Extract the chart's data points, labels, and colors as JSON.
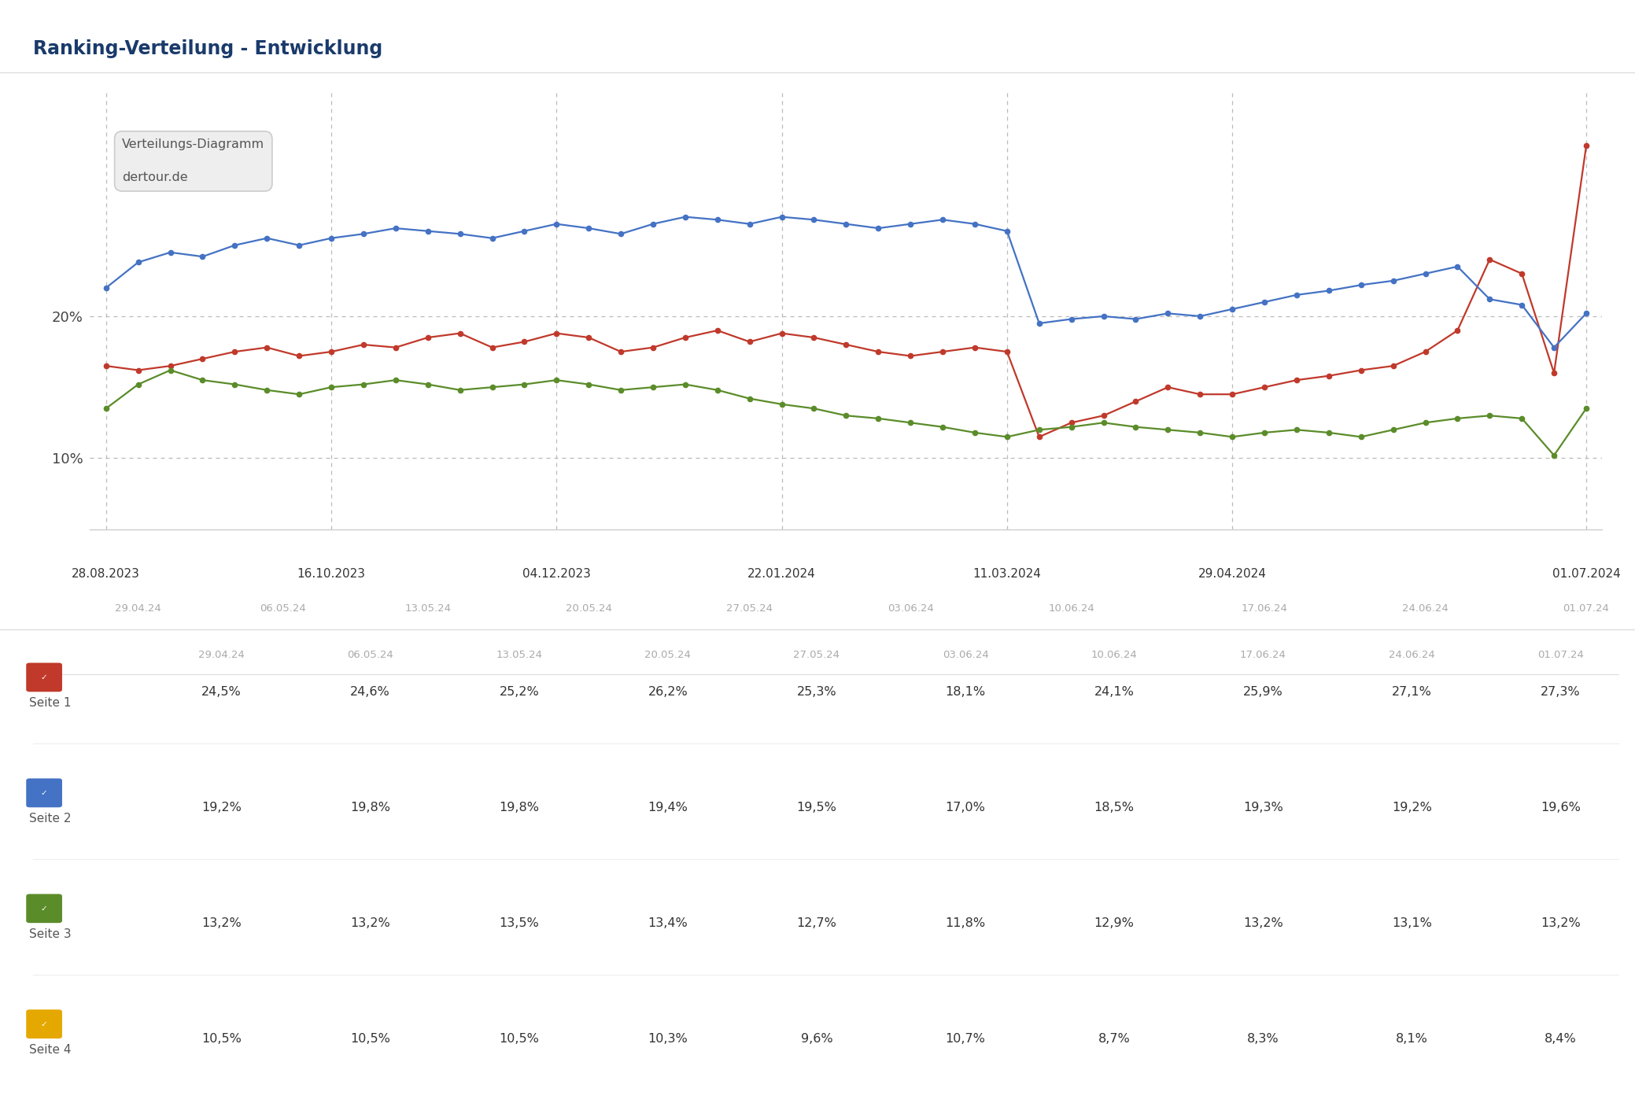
{
  "title": "Ranking-Verteilung - Entwicklung",
  "title_color": "#1a3a6b",
  "background_color": "#ffffff",
  "annotation_box": {
    "line1": "Verteilungs-Diagramm",
    "line2": "dertour.de"
  },
  "x_major_labels": [
    "28.08.2023",
    "16.10.2023",
    "04.12.2023",
    "22.01.2024",
    "11.03.2024",
    "29.04.2024",
    "01.07.2024"
  ],
  "x_minor_labels": [
    "29.04.24",
    "06.05.24",
    "13.05.24",
    "20.05.24",
    "27.05.24",
    "03.06.24",
    "10.06.24",
    "17.06.24",
    "24.06.24",
    "01.07.24"
  ],
  "yticks": [
    10,
    20
  ],
  "ytick_labels": [
    "10%",
    "20%"
  ],
  "ymin": 5,
  "ymax": 36,
  "series": [
    {
      "name": "Seite 1 (red)",
      "color": "#c0392b",
      "values": [
        16.5,
        16.2,
        16.5,
        17.0,
        17.5,
        17.8,
        17.2,
        17.5,
        18.0,
        17.8,
        18.5,
        18.8,
        17.8,
        18.2,
        18.8,
        18.5,
        17.5,
        17.8,
        18.5,
        19.0,
        18.2,
        18.8,
        18.5,
        18.0,
        17.5,
        17.2,
        17.5,
        17.8,
        17.5,
        11.5,
        12.5,
        13.0,
        14.0,
        15.0,
        14.5,
        14.5,
        15.0,
        15.5,
        15.8,
        16.2,
        16.5,
        17.5,
        19.0,
        24.0,
        23.0,
        16.0,
        32.0
      ]
    },
    {
      "name": "Seite 2 (blue)",
      "color": "#4472c4",
      "values": [
        22.0,
        23.8,
        24.5,
        24.2,
        25.0,
        25.5,
        25.0,
        25.5,
        25.8,
        26.2,
        26.0,
        25.8,
        25.5,
        26.0,
        26.5,
        26.2,
        25.8,
        26.5,
        27.0,
        26.8,
        26.5,
        27.0,
        26.8,
        26.5,
        26.2,
        26.5,
        26.8,
        26.5,
        26.0,
        19.5,
        19.8,
        20.0,
        19.8,
        20.2,
        20.0,
        20.5,
        21.0,
        21.5,
        21.8,
        22.2,
        22.5,
        23.0,
        23.5,
        21.2,
        20.8,
        17.8,
        20.2
      ]
    },
    {
      "name": "Seite 3 (green)",
      "color": "#5b8c2a",
      "values": [
        13.5,
        15.2,
        16.2,
        15.5,
        15.2,
        14.8,
        14.5,
        15.0,
        15.2,
        15.5,
        15.2,
        14.8,
        15.0,
        15.2,
        15.5,
        15.2,
        14.8,
        15.0,
        15.2,
        14.8,
        14.2,
        13.8,
        13.5,
        13.0,
        12.8,
        12.5,
        12.2,
        11.8,
        11.5,
        12.0,
        12.2,
        12.5,
        12.2,
        12.0,
        11.8,
        11.5,
        11.8,
        12.0,
        11.8,
        11.5,
        12.0,
        12.5,
        12.8,
        13.0,
        12.8,
        10.2,
        13.5
      ]
    }
  ],
  "table": {
    "col_headers": [
      "29.04.24",
      "06.05.24",
      "13.05.24",
      "20.05.24",
      "27.05.24",
      "03.06.24",
      "10.06.24",
      "17.06.24",
      "24.06.24",
      "01.07.24"
    ],
    "rows": [
      {
        "label": "Seite 1",
        "color": "#c0392b",
        "icon_color": "#c0392b",
        "values": [
          "24,5%",
          "24,6%",
          "25,2%",
          "26,2%",
          "25,3%",
          "18,1%",
          "24,1%",
          "25,9%",
          "27,1%",
          "27,3%"
        ]
      },
      {
        "label": "Seite 2",
        "color": "#4472c4",
        "icon_color": "#4472c4",
        "values": [
          "19,2%",
          "19,8%",
          "19,8%",
          "19,4%",
          "19,5%",
          "17,0%",
          "18,5%",
          "19,3%",
          "19,2%",
          "19,6%"
        ]
      },
      {
        "label": "Seite 3",
        "color": "#5b8c2a",
        "icon_color": "#5b8c2a",
        "values": [
          "13,2%",
          "13,2%",
          "13,5%",
          "13,4%",
          "12,7%",
          "11,8%",
          "12,9%",
          "13,2%",
          "13,1%",
          "13,2%"
        ]
      },
      {
        "label": "Seite 4",
        "color": "#e5a800",
        "icon_color": "#e5a800",
        "values": [
          "10,5%",
          "10,5%",
          "10,5%",
          "10,3%",
          "9,6%",
          "10,7%",
          "8,7%",
          "8,3%",
          "8,1%",
          "8,4%"
        ]
      }
    ]
  }
}
